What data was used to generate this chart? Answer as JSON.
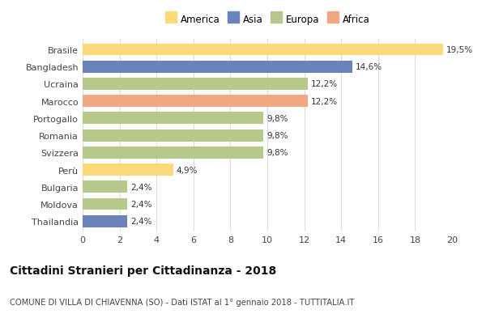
{
  "categories": [
    "Brasile",
    "Bangladesh",
    "Ucraina",
    "Marocco",
    "Portogallo",
    "Romania",
    "Svizzera",
    "Perù",
    "Bulgaria",
    "Moldova",
    "Thailandia"
  ],
  "values": [
    19.5,
    14.6,
    12.2,
    12.2,
    9.8,
    9.8,
    9.8,
    4.9,
    2.4,
    2.4,
    2.4
  ],
  "labels": [
    "19,5%",
    "14,6%",
    "12,2%",
    "12,2%",
    "9,8%",
    "9,8%",
    "9,8%",
    "4,9%",
    "2,4%",
    "2,4%",
    "2,4%"
  ],
  "colors": [
    "#FADA7A",
    "#6B83BB",
    "#B5C98A",
    "#F0A882",
    "#B5C98A",
    "#B5C98A",
    "#B5C98A",
    "#FADA7A",
    "#B5C98A",
    "#B5C98A",
    "#6B83BB"
  ],
  "continents": [
    "America",
    "Asia",
    "Europa",
    "Africa"
  ],
  "legend_colors": [
    "#FADA7A",
    "#6B83BB",
    "#B5C98A",
    "#F0A882"
  ],
  "xlim": [
    0,
    20
  ],
  "xticks": [
    0,
    2,
    4,
    6,
    8,
    10,
    12,
    14,
    16,
    18,
    20
  ],
  "title": "Cittadini Stranieri per Cittadinanza - 2018",
  "subtitle": "COMUNE DI VILLA DI CHIAVENNA (SO) - Dati ISTAT al 1° gennaio 2018 - TUTTITALIA.IT",
  "background_color": "#ffffff",
  "grid_color": "#dddddd"
}
